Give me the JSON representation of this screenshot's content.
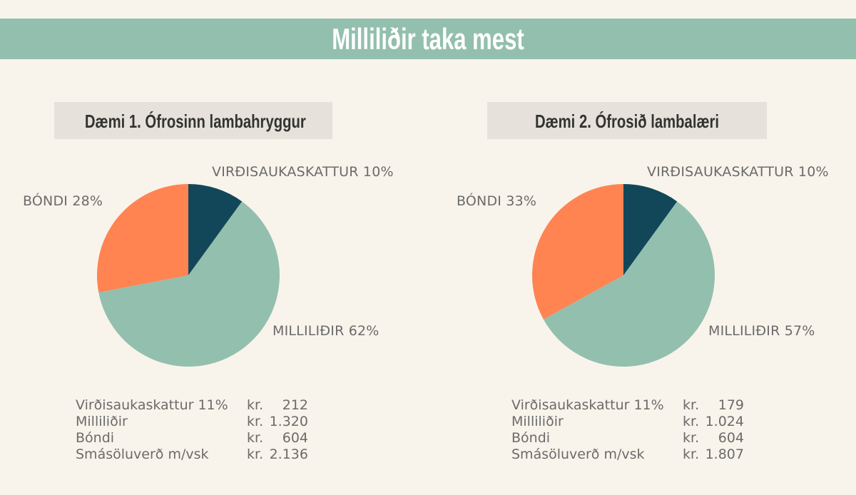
{
  "title": "Milliliðir taka mest",
  "chart_data": [
    {
      "type": "pie",
      "subtitle": "Dæmi 1. Ófrosinn lambahryggur",
      "slices": [
        {
          "label": "VIRÐISAUKASKATTUR",
          "value": 10,
          "display": "VIRÐISAUKASKATTUR 10%",
          "color": "#12475a"
        },
        {
          "label": "MILLILIÐIR",
          "value": 62,
          "display": "MILLILIÐIR 62%",
          "color": "#93bfae"
        },
        {
          "label": "BÓNDI",
          "value": 28,
          "display": "BÓNDI  28%",
          "color": "#ff8451"
        }
      ],
      "table": [
        {
          "label": "Virðisaukaskattur 11%",
          "currency": "kr.",
          "amount": "212"
        },
        {
          "label": "Milliliðir",
          "currency": "kr.",
          "amount": "1.320"
        },
        {
          "label": "Bóndi",
          "currency": "kr.",
          "amount": "604"
        },
        {
          "label": "Smásöluverð m/vsk",
          "currency": "kr.",
          "amount": "2.136"
        }
      ]
    },
    {
      "type": "pie",
      "subtitle": "Dæmi 2. Ófrosið lambalæri",
      "slices": [
        {
          "label": "VIRÐISAUKASKATTUR",
          "value": 10,
          "display": "VIRÐISAUKASKATTUR 10%",
          "color": "#12475a"
        },
        {
          "label": "MILLILIÐIR",
          "value": 57,
          "display": "MILLILIÐIR 57%",
          "color": "#93bfae"
        },
        {
          "label": "BÓNDI",
          "value": 33,
          "display": "BÓNDI  33%",
          "color": "#ff8451"
        }
      ],
      "table": [
        {
          "label": "Virðisaukaskattur 11%",
          "currency": "kr.",
          "amount": "179"
        },
        {
          "label": "Milliliðir",
          "currency": "kr.",
          "amount": "1.024"
        },
        {
          "label": "Bóndi",
          "currency": "kr.",
          "amount": "604"
        },
        {
          "label": "Smásöluverð m/vsk",
          "currency": "kr.",
          "amount": "1.807"
        }
      ]
    }
  ]
}
